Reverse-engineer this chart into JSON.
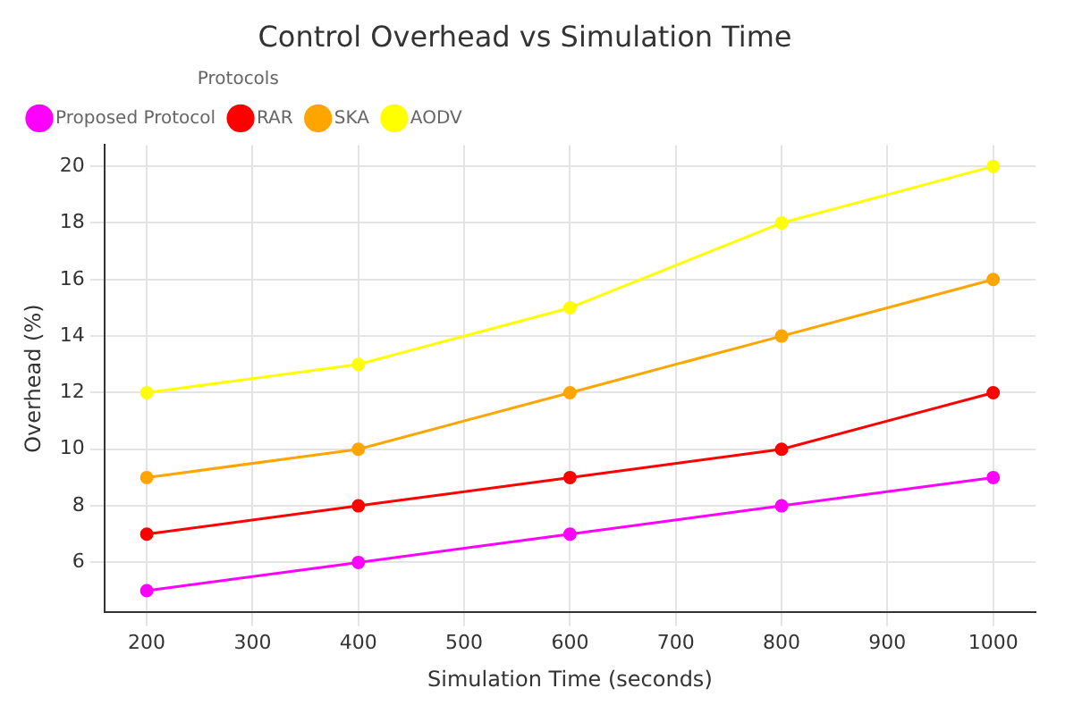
{
  "chart_data": {
    "type": "line",
    "title": "Control Overhead vs Simulation Time",
    "xlabel": "Simulation Time (seconds)",
    "ylabel": "Overhead (%)",
    "legend_title": "Protocols",
    "x": [
      200,
      400,
      600,
      800,
      1000
    ],
    "series": [
      {
        "name": "Proposed Protocol",
        "color": "#ff00ff",
        "values": [
          5,
          6,
          7,
          8,
          9
        ]
      },
      {
        "name": "RAR",
        "color": "#ff0000",
        "values": [
          7,
          8,
          9,
          10,
          12
        ]
      },
      {
        "name": "SKA",
        "color": "#ffa500",
        "values": [
          9,
          10,
          12,
          14,
          16
        ]
      },
      {
        "name": "AODV",
        "color": "#ffff00",
        "values": [
          12,
          13,
          15,
          18,
          20
        ]
      }
    ],
    "xlim": [
      160,
      1040
    ],
    "xticks": [
      200,
      300,
      400,
      500,
      600,
      700,
      800,
      900,
      1000
    ],
    "ylim": [
      4.25,
      20.75
    ],
    "yticks": [
      6,
      8,
      10,
      12,
      14,
      16,
      18,
      20
    ],
    "grid": true,
    "legend": "top left",
    "marker": "circle",
    "line_style": "solid"
  }
}
